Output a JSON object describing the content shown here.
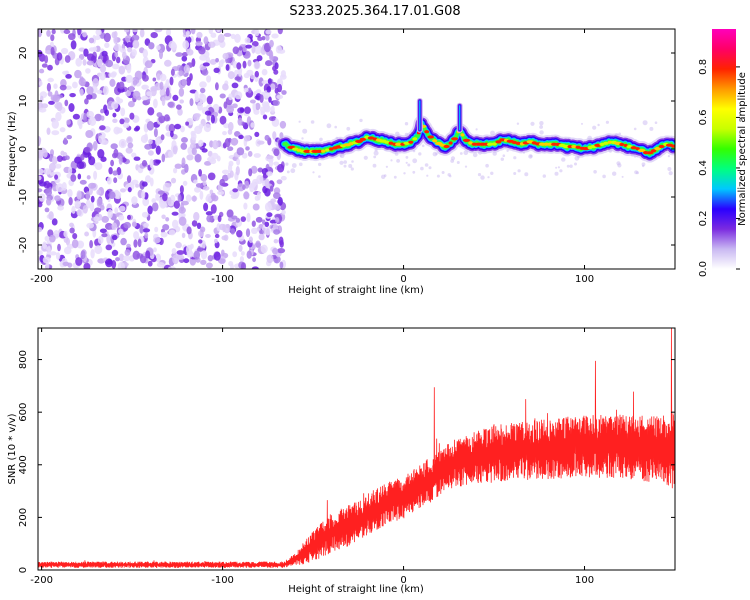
{
  "title": "S233.2025.364.17.01.G08",
  "chart_data": [
    {
      "type": "heatmap",
      "panel": "spectrogram",
      "xlabel": "Height of straight line (km)",
      "ylabel": "Frequency (Hz)",
      "xlim": [
        -202,
        150
      ],
      "ylim": [
        -25,
        25
      ],
      "xticks": [
        -200,
        -100,
        0,
        100
      ],
      "yticks": [
        -20,
        -10,
        0,
        10,
        20
      ],
      "noise_region_x": [
        -202,
        -66
      ],
      "ridge": [
        {
          "x": -66,
          "y": 1.0
        },
        {
          "x": -60,
          "y": 0.0
        },
        {
          "x": -55,
          "y": -0.5
        },
        {
          "x": -50,
          "y": -0.5
        },
        {
          "x": -45,
          "y": -0.5
        },
        {
          "x": -40,
          "y": 0.0
        },
        {
          "x": -35,
          "y": 0.5
        },
        {
          "x": -30,
          "y": 1.0
        },
        {
          "x": -25,
          "y": 1.5
        },
        {
          "x": -20,
          "y": 2.5
        },
        {
          "x": -15,
          "y": 2.0
        },
        {
          "x": -10,
          "y": 1.5
        },
        {
          "x": -5,
          "y": 1.0
        },
        {
          "x": 0,
          "y": 1.0
        },
        {
          "x": 5,
          "y": 1.5
        },
        {
          "x": 8,
          "y": 3.0
        },
        {
          "x": 10,
          "y": 5.0
        },
        {
          "x": 13,
          "y": 3.5
        },
        {
          "x": 16,
          "y": 2.0
        },
        {
          "x": 20,
          "y": 1.0
        },
        {
          "x": 24,
          "y": 0.5
        },
        {
          "x": 28,
          "y": 2.0
        },
        {
          "x": 31,
          "y": 4.0
        },
        {
          "x": 34,
          "y": 2.0
        },
        {
          "x": 38,
          "y": 1.0
        },
        {
          "x": 45,
          "y": 1.0
        },
        {
          "x": 50,
          "y": 1.0
        },
        {
          "x": 55,
          "y": 2.0
        },
        {
          "x": 60,
          "y": 1.5
        },
        {
          "x": 65,
          "y": 1.0
        },
        {
          "x": 70,
          "y": 1.5
        },
        {
          "x": 75,
          "y": 1.0
        },
        {
          "x": 80,
          "y": 1.0
        },
        {
          "x": 85,
          "y": 1.0
        },
        {
          "x": 90,
          "y": 0.5
        },
        {
          "x": 95,
          "y": 0.5
        },
        {
          "x": 100,
          "y": 0.0
        },
        {
          "x": 105,
          "y": 0.5
        },
        {
          "x": 110,
          "y": 1.0
        },
        {
          "x": 115,
          "y": 1.5
        },
        {
          "x": 120,
          "y": 1.0
        },
        {
          "x": 125,
          "y": 0.5
        },
        {
          "x": 130,
          "y": 0.0
        },
        {
          "x": 135,
          "y": -1.0
        },
        {
          "x": 140,
          "y": 0.0
        },
        {
          "x": 145,
          "y": 1.0
        },
        {
          "x": 150,
          "y": 0.5
        }
      ],
      "spikes": [
        {
          "x": 9,
          "y_top": 10
        },
        {
          "x": 31,
          "y_top": 9
        }
      ],
      "colorbar": {
        "label": "Normalized spectral amplitude",
        "range": [
          0,
          0.95
        ],
        "ticks": [
          0.0,
          0.2,
          0.4,
          0.6,
          0.8
        ],
        "tick_labels": [
          "0.0",
          "0.2",
          "0.4",
          "0.6",
          "0.8"
        ],
        "colors": [
          "#ffffff",
          "#c9b8f2",
          "#7b2be0",
          "#2a00ff",
          "#00c8ff",
          "#00ff80",
          "#33ff00",
          "#c8ff00",
          "#ffff00",
          "#ff9900",
          "#ff2200",
          "#ff0066",
          "#ff00bb"
        ]
      }
    },
    {
      "type": "line",
      "panel": "snr",
      "xlabel": "Height of straight line (km)",
      "ylabel": "SNR (10 * v/v)",
      "xlim": [
        -202,
        150
      ],
      "ylim": [
        0,
        920
      ],
      "xticks": [
        -200,
        -100,
        0,
        100
      ],
      "yticks": [
        0,
        200,
        400,
        600,
        800
      ],
      "color": "#ff0000",
      "envelope": [
        {
          "x": -202,
          "mean": 20,
          "amp": 12
        },
        {
          "x": -66,
          "mean": 20,
          "amp": 12
        },
        {
          "x": -60,
          "mean": 40,
          "amp": 25
        },
        {
          "x": -50,
          "mean": 90,
          "amp": 60
        },
        {
          "x": -40,
          "mean": 140,
          "amp": 75
        },
        {
          "x": -30,
          "mean": 170,
          "amp": 80
        },
        {
          "x": -20,
          "mean": 210,
          "amp": 80
        },
        {
          "x": -10,
          "mean": 250,
          "amp": 80
        },
        {
          "x": 0,
          "mean": 280,
          "amp": 85
        },
        {
          "x": 10,
          "mean": 320,
          "amp": 85
        },
        {
          "x": 20,
          "mean": 370,
          "amp": 90
        },
        {
          "x": 30,
          "mean": 410,
          "amp": 95
        },
        {
          "x": 40,
          "mean": 430,
          "amp": 100
        },
        {
          "x": 50,
          "mean": 440,
          "amp": 110
        },
        {
          "x": 60,
          "mean": 450,
          "amp": 110
        },
        {
          "x": 80,
          "mean": 460,
          "amp": 115
        },
        {
          "x": 100,
          "mean": 470,
          "amp": 120
        },
        {
          "x": 120,
          "mean": 470,
          "amp": 120
        },
        {
          "x": 140,
          "mean": 460,
          "amp": 130
        },
        {
          "x": 150,
          "mean": 450,
          "amp": 150
        }
      ],
      "peaks": [
        {
          "x": 17,
          "y": 695
        },
        {
          "x": 106,
          "y": 795
        },
        {
          "x": 148,
          "y": 920
        }
      ]
    }
  ]
}
